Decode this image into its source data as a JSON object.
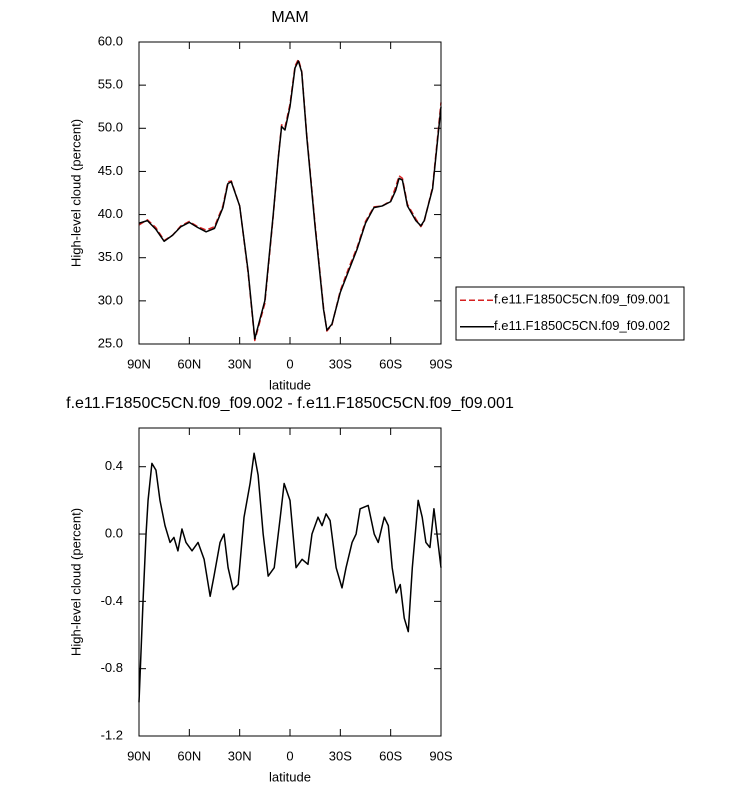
{
  "chart_data": [
    {
      "type": "line",
      "title": "MAM",
      "xlabel": "latitude",
      "ylabel": "High-level cloud (percent)",
      "x": [
        90,
        85,
        80,
        75,
        70,
        65,
        60,
        55,
        50,
        45,
        40,
        37,
        35,
        30,
        25,
        21,
        15,
        10,
        7,
        5,
        3,
        0,
        -3,
        -5,
        -7,
        -10,
        -15,
        -20,
        -22,
        -25,
        -30,
        -35,
        -40,
        -45,
        -50,
        -55,
        -60,
        -63,
        -65,
        -67,
        -70,
        -75,
        -78,
        -80,
        -85,
        -90
      ],
      "series": [
        {
          "name": "f.e11.F1850C5CN.f09_f09.001",
          "color": "#d62020",
          "linestyle": "dashed",
          "values": [
            38.8,
            39.4,
            38.5,
            37.0,
            37.6,
            38.7,
            39.2,
            38.6,
            38.2,
            38.6,
            41.0,
            43.8,
            43.9,
            41.0,
            33.3,
            25.4,
            29.7,
            39.8,
            46.6,
            50.4,
            50.1,
            52.8,
            57.2,
            58.0,
            56.6,
            49.2,
            38.8,
            29.2,
            26.5,
            27.2,
            31.2,
            33.8,
            36.2,
            39.2,
            40.9,
            41.0,
            41.6,
            43.2,
            44.5,
            44.2,
            41.2,
            39.5,
            38.6,
            39.2,
            43.2,
            53.0
          ]
        },
        {
          "name": "f.e11.F1850C5CN.f09_f09.002",
          "color": "#000000",
          "linestyle": "solid",
          "values": [
            39.0,
            39.3,
            38.3,
            36.9,
            37.6,
            38.6,
            39.1,
            38.5,
            38.0,
            38.4,
            40.8,
            43.6,
            43.8,
            41.0,
            33.5,
            25.6,
            30.0,
            40.0,
            46.5,
            50.2,
            49.8,
            52.5,
            57.0,
            57.8,
            56.5,
            49.0,
            38.5,
            29.0,
            26.6,
            27.3,
            31.0,
            33.5,
            36.0,
            39.0,
            40.8,
            41.0,
            41.5,
            42.8,
            44.2,
            44.0,
            41.0,
            39.3,
            38.7,
            39.3,
            43.0,
            52.5
          ]
        }
      ],
      "xlim": [
        90,
        -90
      ],
      "xticks": [
        {
          "value": 90,
          "label": "90N"
        },
        {
          "value": 60,
          "label": "60N"
        },
        {
          "value": 30,
          "label": "30N"
        },
        0,
        {
          "value": -30,
          "label": "30S"
        },
        {
          "value": -60,
          "label": "60S"
        },
        {
          "value": -90,
          "label": "90S"
        }
      ],
      "ylim": [
        25,
        60
      ],
      "yticks": [
        {
          "value": 25,
          "label": "25.0"
        },
        {
          "value": 30,
          "label": "30.0"
        },
        {
          "value": 35,
          "label": "35.0"
        },
        {
          "value": 40,
          "label": "40.0"
        },
        {
          "value": 45,
          "label": "45.0"
        },
        {
          "value": 50,
          "label": "50.0"
        },
        {
          "value": 55,
          "label": "55.0"
        },
        {
          "value": 60,
          "label": "60.0"
        }
      ],
      "legend": "right"
    },
    {
      "type": "line",
      "title": "f.e11.F1850C5CN.f09_f09.002 - f.e11.F1850C5CN.f09_f09.001",
      "xlabel": "latitude",
      "ylabel": "High-level cloud (percent)",
      "x": [
        90,
        87.6,
        85.8,
        84.6,
        82.3,
        79.9,
        77.5,
        74.5,
        71.5,
        69.2,
        66.8,
        64.4,
        62,
        58.4,
        54.8,
        51.2,
        47.6,
        45.3,
        41.7,
        39.3,
        36.9,
        33.9,
        30.9,
        27.4,
        23.8,
        21.4,
        19,
        16,
        13,
        9.4,
        5.8,
        3.5,
        0,
        -3.6,
        -7.2,
        -10.7,
        -13.1,
        -16.7,
        -19.1,
        -21.5,
        -23.9,
        -27.5,
        -31,
        -33.4,
        -37,
        -39.4,
        -41.8,
        -46.6,
        -50.2,
        -52.6,
        -56.2,
        -58.6,
        -60.9,
        -63.3,
        -65.7,
        -68.1,
        -70.5,
        -72.9,
        -76.4,
        -78.8,
        -81,
        -83.4,
        -85.8,
        -88.2,
        -90
      ],
      "color": "#000000",
      "values": [
        -1.0,
        -0.4,
        0.0,
        0.2,
        0.42,
        0.38,
        0.2,
        0.05,
        -0.05,
        -0.02,
        -0.1,
        0.03,
        -0.05,
        -0.1,
        -0.05,
        -0.15,
        -0.37,
        -0.25,
        -0.05,
        0.0,
        -0.2,
        -0.33,
        -0.3,
        0.1,
        0.3,
        0.48,
        0.35,
        0.0,
        -0.25,
        -0.2,
        0.1,
        0.3,
        0.2,
        -0.2,
        -0.15,
        -0.18,
        0.0,
        0.1,
        0.05,
        0.12,
        0.08,
        -0.2,
        -0.32,
        -0.2,
        -0.05,
        0.0,
        0.15,
        0.17,
        0.0,
        -0.05,
        0.1,
        0.05,
        -0.2,
        -0.35,
        -0.3,
        -0.5,
        -0.58,
        -0.2,
        0.2,
        0.1,
        -0.05,
        -0.08,
        0.15,
        -0.05,
        -0.2
      ],
      "xlim": [
        90,
        -90
      ],
      "xticks": [
        {
          "value": 90,
          "label": "90N"
        },
        {
          "value": 60,
          "label": "60N"
        },
        {
          "value": 30,
          "label": "30N"
        },
        0,
        {
          "value": -30,
          "label": "30S"
        },
        {
          "value": -60,
          "label": "60S"
        },
        {
          "value": -90,
          "label": "90S"
        }
      ],
      "ylim": [
        -1.2,
        0.63
      ],
      "yticks": [
        -1.2,
        -0.8,
        -0.4,
        {
          "value": 0,
          "label": "0.0"
        },
        0.4
      ]
    }
  ]
}
